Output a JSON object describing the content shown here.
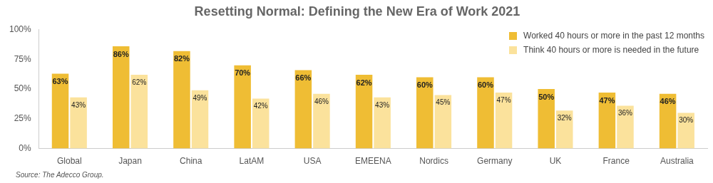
{
  "chart_data": {
    "type": "bar",
    "title": "Resetting Normal: Defining the New Era of Work 2021",
    "categories": [
      "Global",
      "Japan",
      "China",
      "LatAM",
      "USA",
      "EMEENA",
      "Nordics",
      "Germany",
      "UK",
      "France",
      "Australia"
    ],
    "series": [
      {
        "name": "Worked 40 hours or more in the past 12 months",
        "color": "#efbd34",
        "values": [
          63,
          86,
          82,
          70,
          66,
          62,
          60,
          60,
          50,
          47,
          46
        ],
        "value_labels": [
          "63%",
          "86%",
          "82%",
          "70%",
          "66%",
          "62%",
          "60%",
          "60%",
          "50%",
          "47%",
          "46%"
        ]
      },
      {
        "name": "Think 40 hours or more is needed in the future",
        "color": "#fbe29c",
        "values": [
          43,
          62,
          49,
          42,
          46,
          43,
          45,
          47,
          32,
          36,
          30
        ],
        "value_labels": [
          "43%",
          "62%",
          "49%",
          "42%",
          "46%",
          "43%",
          "45%",
          "47%",
          "32%",
          "36%",
          "30%"
        ]
      }
    ],
    "ylim": [
      0,
      100
    ],
    "yticks": [
      {
        "value": 0,
        "label": "0%"
      },
      {
        "value": 25,
        "label": "25%"
      },
      {
        "value": 50,
        "label": "50%"
      },
      {
        "value": 75,
        "label": "75%"
      },
      {
        "value": 100,
        "label": "100%"
      }
    ],
    "grid": false,
    "legend": "upper right",
    "data_labels": true,
    "annotations": [
      "Source: The Adecco Group."
    ]
  }
}
